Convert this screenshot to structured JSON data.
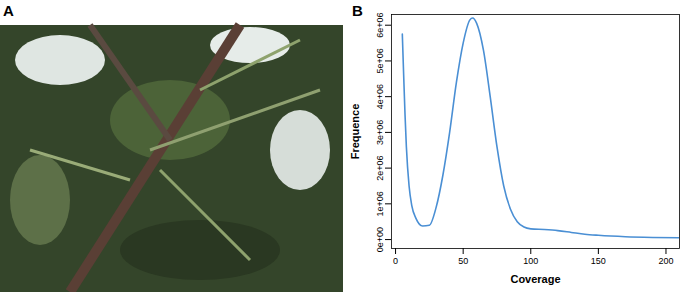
{
  "panel_labels": [
    "A",
    "B"
  ],
  "chart_data": {
    "type": "line",
    "x_label": "Coverage",
    "y_label": "Frequence",
    "x": [
      5,
      6,
      7,
      8,
      10,
      12,
      15,
      20,
      25,
      30,
      35,
      40,
      45,
      50,
      55,
      57,
      60,
      65,
      70,
      75,
      80,
      85,
      90,
      95,
      100,
      110,
      120,
      130,
      140,
      150,
      170,
      190,
      210
    ],
    "values": [
      5750000,
      4600000,
      3500000,
      2600000,
      1500000,
      950000,
      600000,
      380000,
      400000,
      900000,
      1800000,
      3000000,
      4400000,
      5500000,
      6150000,
      6200000,
      6050000,
      5300000,
      4000000,
      2600000,
      1500000,
      850000,
      500000,
      350000,
      300000,
      280000,
      250000,
      200000,
      150000,
      120000,
      80000,
      60000,
      50000
    ],
    "color": "#4a8fd4",
    "xlim": [
      -3,
      210
    ],
    "ylim": [
      -250000,
      6300000
    ],
    "xticks": [
      0,
      50,
      100,
      150,
      200
    ],
    "yticks": [
      {
        "value": 0,
        "label": "0e+00"
      },
      {
        "value": 1000000,
        "label": "1e+06"
      },
      {
        "value": 2000000,
        "label": "2e+06"
      },
      {
        "value": 3000000,
        "label": "3e+06"
      },
      {
        "value": 4000000,
        "label": "4e+06"
      },
      {
        "value": 5000000,
        "label": "5e+06"
      },
      {
        "value": 6000000,
        "label": "6e+06"
      }
    ],
    "grid": false
  }
}
